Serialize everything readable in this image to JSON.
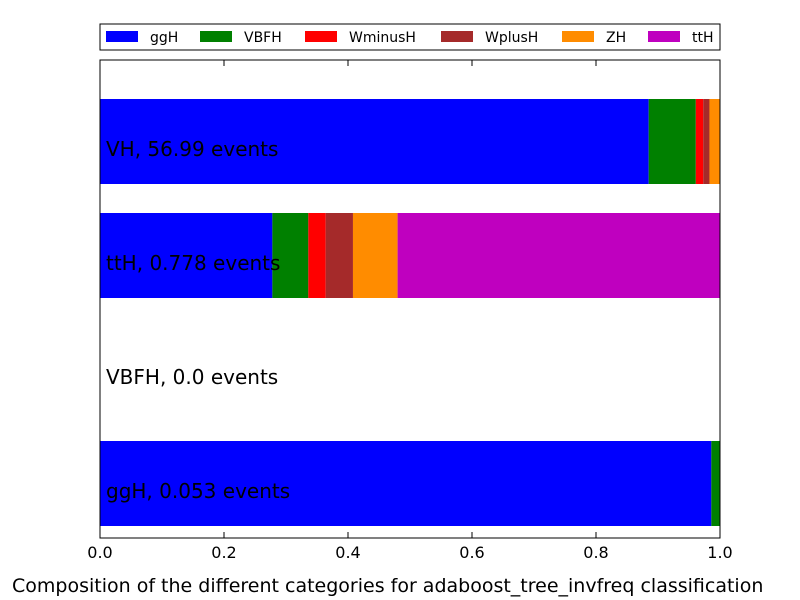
{
  "chart_data": {
    "type": "bar",
    "orientation": "horizontal",
    "stacked": true,
    "categories": [
      "VH, 56.99 events",
      "ttH, 0.778 events",
      "VBFH, 0.0 events",
      "ggH, 0.053 events"
    ],
    "series": [
      {
        "name": "ggH",
        "color": "#0000ff",
        "values": [
          0.885,
          0.278,
          0.0,
          0.986
        ]
      },
      {
        "name": "VBFH",
        "color": "#008000",
        "values": [
          0.076,
          0.058,
          0.0,
          0.014
        ]
      },
      {
        "name": "WminusH",
        "color": "#ff0000",
        "values": [
          0.012,
          0.028,
          0.0,
          0.0
        ]
      },
      {
        "name": "WplusH",
        "color": "#a52a2a",
        "values": [
          0.01,
          0.044,
          0.0,
          0.0
        ]
      },
      {
        "name": "ZH",
        "color": "#ff8c00",
        "values": [
          0.017,
          0.072,
          0.0,
          0.0
        ]
      },
      {
        "name": "ttH",
        "color": "#bf00bf",
        "values": [
          0.0,
          0.52,
          0.0,
          0.0
        ]
      }
    ],
    "xlim": [
      0,
      1
    ],
    "xticks": [
      "0.0",
      "0.2",
      "0.4",
      "0.6",
      "0.8",
      "1.0"
    ],
    "xlabel": "Composition of the different categories for adaboost_tree_invfreq classification",
    "legend_position": "top",
    "grid": false
  }
}
